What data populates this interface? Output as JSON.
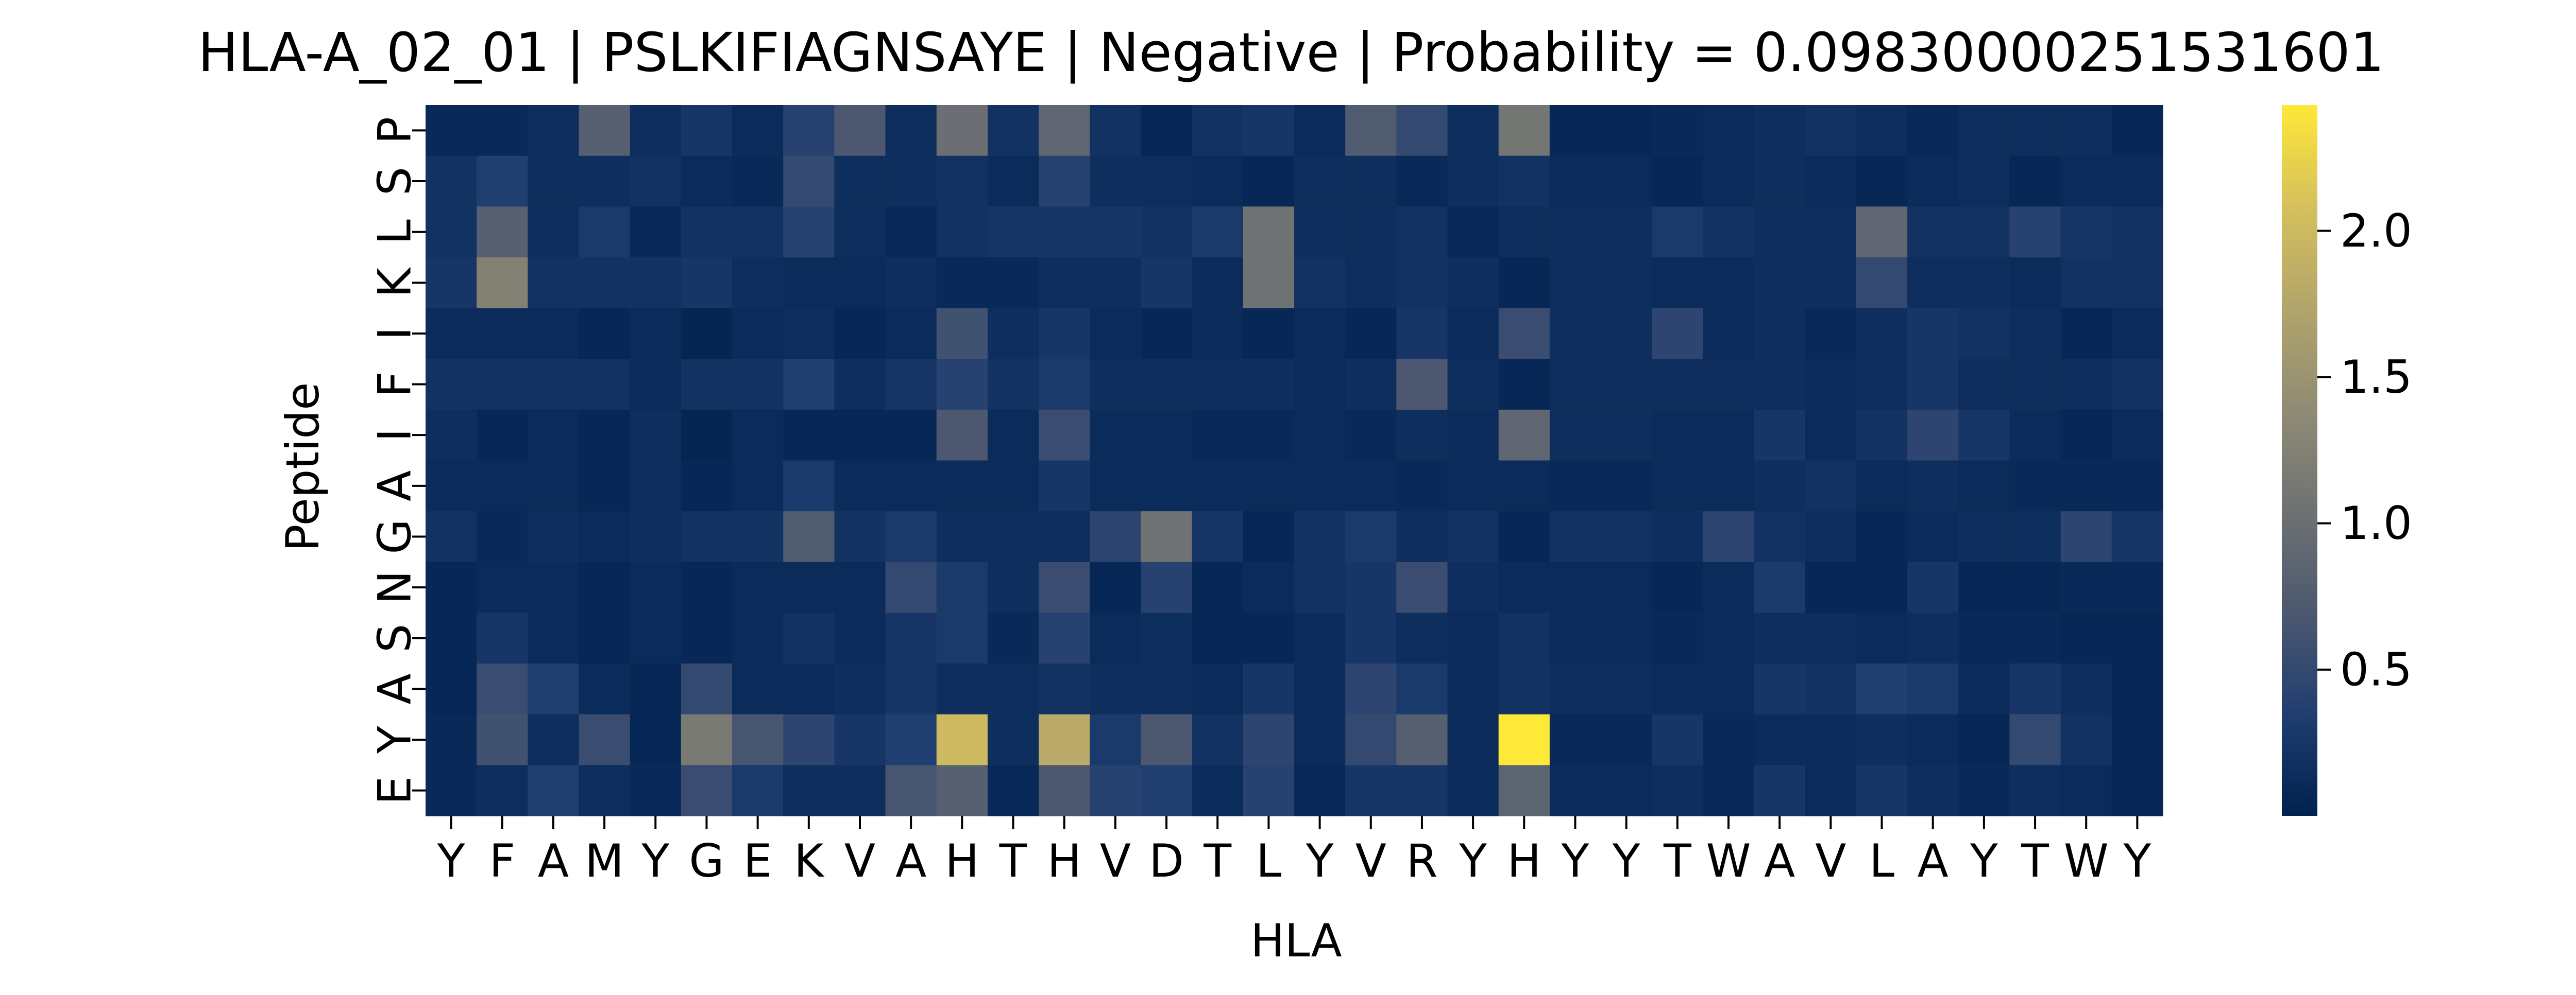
{
  "chart_data": {
    "type": "heatmap",
    "title": "HLA-A_02_01 | PSLKIFIAGNSAYE | Negative | Probability = 0.09830000251531601",
    "xlabel": "HLA",
    "ylabel": "Peptide",
    "x_tick_labels": [
      "Y",
      "F",
      "A",
      "M",
      "Y",
      "G",
      "E",
      "K",
      "V",
      "A",
      "H",
      "T",
      "H",
      "V",
      "D",
      "T",
      "L",
      "Y",
      "V",
      "R",
      "Y",
      "H",
      "Y",
      "Y",
      "T",
      "W",
      "A",
      "V",
      "L",
      "A",
      "Y",
      "T",
      "W",
      "Y"
    ],
    "y_tick_labels": [
      "P",
      "S",
      "L",
      "K",
      "I",
      "F",
      "I",
      "A",
      "G",
      "N",
      "S",
      "A",
      "Y",
      "E"
    ],
    "colorbar": {
      "colormap": "cividis",
      "vmin": 0.0,
      "vmax": 2.43,
      "ticks": [
        0.5,
        1.0,
        1.5,
        2.0
      ],
      "tick_labels": [
        "0.5",
        "1.0",
        "1.5",
        "2.0"
      ]
    },
    "values": [
      [
        0.1,
        0.1,
        0.15,
        0.8,
        0.15,
        0.25,
        0.12,
        0.4,
        0.7,
        0.15,
        1.0,
        0.2,
        0.9,
        0.2,
        0.08,
        0.2,
        0.25,
        0.12,
        0.75,
        0.5,
        0.15,
        1.1,
        0.08,
        0.08,
        0.1,
        0.12,
        0.15,
        0.2,
        0.15,
        0.1,
        0.15,
        0.15,
        0.15,
        0.08
      ],
      [
        0.2,
        0.35,
        0.15,
        0.15,
        0.2,
        0.12,
        0.1,
        0.5,
        0.15,
        0.15,
        0.2,
        0.12,
        0.4,
        0.15,
        0.15,
        0.12,
        0.08,
        0.15,
        0.15,
        0.1,
        0.15,
        0.2,
        0.12,
        0.12,
        0.08,
        0.12,
        0.15,
        0.12,
        0.08,
        0.12,
        0.15,
        0.08,
        0.12,
        0.12
      ],
      [
        0.2,
        0.8,
        0.15,
        0.3,
        0.1,
        0.2,
        0.2,
        0.4,
        0.15,
        0.1,
        0.2,
        0.25,
        0.25,
        0.25,
        0.2,
        0.3,
        1.05,
        0.15,
        0.15,
        0.2,
        0.1,
        0.15,
        0.15,
        0.15,
        0.3,
        0.2,
        0.15,
        0.15,
        0.9,
        0.2,
        0.2,
        0.4,
        0.25,
        0.2
      ],
      [
        0.25,
        1.25,
        0.2,
        0.2,
        0.2,
        0.25,
        0.15,
        0.12,
        0.12,
        0.15,
        0.1,
        0.1,
        0.15,
        0.15,
        0.25,
        0.12,
        1.05,
        0.2,
        0.15,
        0.2,
        0.15,
        0.08,
        0.15,
        0.15,
        0.12,
        0.12,
        0.15,
        0.15,
        0.5,
        0.15,
        0.15,
        0.12,
        0.2,
        0.2
      ],
      [
        0.12,
        0.12,
        0.12,
        0.08,
        0.12,
        0.05,
        0.12,
        0.15,
        0.08,
        0.12,
        0.6,
        0.15,
        0.25,
        0.12,
        0.08,
        0.12,
        0.08,
        0.12,
        0.08,
        0.25,
        0.12,
        0.55,
        0.15,
        0.15,
        0.45,
        0.12,
        0.15,
        0.1,
        0.15,
        0.25,
        0.2,
        0.15,
        0.08,
        0.12
      ],
      [
        0.2,
        0.2,
        0.2,
        0.2,
        0.12,
        0.2,
        0.2,
        0.35,
        0.15,
        0.25,
        0.4,
        0.2,
        0.3,
        0.15,
        0.15,
        0.15,
        0.15,
        0.12,
        0.15,
        0.7,
        0.15,
        0.08,
        0.15,
        0.15,
        0.15,
        0.15,
        0.15,
        0.12,
        0.15,
        0.25,
        0.15,
        0.15,
        0.15,
        0.2
      ],
      [
        0.15,
        0.08,
        0.12,
        0.08,
        0.15,
        0.05,
        0.12,
        0.08,
        0.08,
        0.08,
        0.7,
        0.12,
        0.55,
        0.12,
        0.12,
        0.1,
        0.1,
        0.12,
        0.1,
        0.15,
        0.12,
        0.9,
        0.15,
        0.15,
        0.12,
        0.12,
        0.25,
        0.12,
        0.2,
        0.45,
        0.25,
        0.12,
        0.08,
        0.12
      ],
      [
        0.12,
        0.12,
        0.12,
        0.08,
        0.15,
        0.08,
        0.12,
        0.3,
        0.12,
        0.12,
        0.12,
        0.12,
        0.25,
        0.12,
        0.12,
        0.12,
        0.12,
        0.12,
        0.12,
        0.1,
        0.12,
        0.12,
        0.1,
        0.1,
        0.12,
        0.12,
        0.15,
        0.2,
        0.12,
        0.15,
        0.12,
        0.1,
        0.1,
        0.1
      ],
      [
        0.2,
        0.1,
        0.15,
        0.12,
        0.15,
        0.2,
        0.2,
        0.75,
        0.2,
        0.3,
        0.15,
        0.15,
        0.15,
        0.45,
        1.05,
        0.25,
        0.08,
        0.2,
        0.3,
        0.15,
        0.2,
        0.08,
        0.2,
        0.2,
        0.15,
        0.45,
        0.2,
        0.15,
        0.08,
        0.12,
        0.15,
        0.15,
        0.45,
        0.25
      ],
      [
        0.08,
        0.12,
        0.12,
        0.08,
        0.12,
        0.08,
        0.12,
        0.12,
        0.12,
        0.5,
        0.3,
        0.15,
        0.55,
        0.08,
        0.4,
        0.08,
        0.12,
        0.2,
        0.25,
        0.55,
        0.15,
        0.12,
        0.12,
        0.12,
        0.08,
        0.12,
        0.3,
        0.08,
        0.08,
        0.25,
        0.08,
        0.08,
        0.1,
        0.1
      ],
      [
        0.08,
        0.25,
        0.12,
        0.08,
        0.12,
        0.08,
        0.12,
        0.2,
        0.12,
        0.25,
        0.3,
        0.1,
        0.4,
        0.12,
        0.15,
        0.08,
        0.08,
        0.12,
        0.25,
        0.15,
        0.12,
        0.2,
        0.12,
        0.12,
        0.1,
        0.12,
        0.15,
        0.15,
        0.12,
        0.15,
        0.1,
        0.1,
        0.08,
        0.08
      ],
      [
        0.08,
        0.55,
        0.35,
        0.12,
        0.08,
        0.5,
        0.12,
        0.12,
        0.15,
        0.25,
        0.15,
        0.15,
        0.2,
        0.15,
        0.15,
        0.12,
        0.25,
        0.12,
        0.45,
        0.3,
        0.12,
        0.2,
        0.15,
        0.15,
        0.12,
        0.12,
        0.25,
        0.2,
        0.35,
        0.3,
        0.12,
        0.25,
        0.15,
        0.08
      ],
      [
        0.1,
        0.6,
        0.15,
        0.55,
        0.08,
        1.15,
        0.65,
        0.45,
        0.25,
        0.35,
        2.0,
        0.15,
        1.8,
        0.3,
        0.7,
        0.2,
        0.45,
        0.12,
        0.5,
        0.8,
        0.12,
        2.43,
        0.1,
        0.1,
        0.25,
        0.1,
        0.12,
        0.12,
        0.15,
        0.12,
        0.08,
        0.5,
        0.2,
        0.08
      ],
      [
        0.1,
        0.15,
        0.35,
        0.15,
        0.1,
        0.55,
        0.3,
        0.15,
        0.15,
        0.65,
        0.8,
        0.1,
        0.7,
        0.4,
        0.35,
        0.12,
        0.4,
        0.1,
        0.25,
        0.25,
        0.12,
        0.85,
        0.12,
        0.12,
        0.15,
        0.1,
        0.25,
        0.12,
        0.25,
        0.15,
        0.1,
        0.15,
        0.12,
        0.08
      ]
    ]
  }
}
